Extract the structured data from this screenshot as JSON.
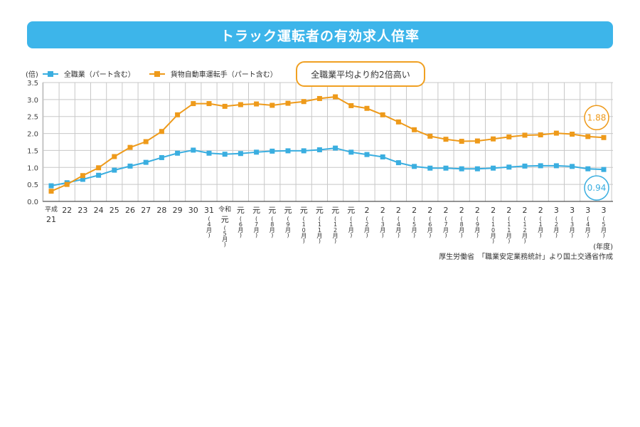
{
  "header": {
    "title": "トラック運転者の有効求人倍率"
  },
  "callout": "全職業平均より約2倍高い",
  "source": "厚生労働省　「職業安定業務統計」より国土交通省作成",
  "chart_data": {
    "type": "line",
    "title": "トラック運転者の有効求人倍率",
    "ylabel": "(倍)",
    "xlabel": "(年度)",
    "ylim": [
      0,
      3.5
    ],
    "yticks": [
      "0.0",
      "0.5",
      "1.0",
      "1.5",
      "2.0",
      "2.5",
      "3.0",
      "3.5"
    ],
    "grid": true,
    "legend_position": "top-left",
    "categories": [
      {
        "lines": [
          "平成",
          "21"
        ],
        "sub": ""
      },
      {
        "lines": [
          "22"
        ],
        "sub": ""
      },
      {
        "lines": [
          "23"
        ],
        "sub": ""
      },
      {
        "lines": [
          "24"
        ],
        "sub": ""
      },
      {
        "lines": [
          "25"
        ],
        "sub": ""
      },
      {
        "lines": [
          "26"
        ],
        "sub": ""
      },
      {
        "lines": [
          "27"
        ],
        "sub": ""
      },
      {
        "lines": [
          "28"
        ],
        "sub": ""
      },
      {
        "lines": [
          "29"
        ],
        "sub": ""
      },
      {
        "lines": [
          "30"
        ],
        "sub": ""
      },
      {
        "lines": [
          "31"
        ],
        "sub": "4月"
      },
      {
        "lines": [
          "令和",
          "元"
        ],
        "sub": "5月"
      },
      {
        "lines": [
          "元"
        ],
        "sub": "6月"
      },
      {
        "lines": [
          "元"
        ],
        "sub": "7月"
      },
      {
        "lines": [
          "元"
        ],
        "sub": "8月"
      },
      {
        "lines": [
          "元"
        ],
        "sub": "9月"
      },
      {
        "lines": [
          "元"
        ],
        "sub": "10月"
      },
      {
        "lines": [
          "元"
        ],
        "sub": "11月"
      },
      {
        "lines": [
          "元"
        ],
        "sub": "12月"
      },
      {
        "lines": [
          "元"
        ],
        "sub": "1月"
      },
      {
        "lines": [
          "2"
        ],
        "sub": "2月"
      },
      {
        "lines": [
          "2"
        ],
        "sub": "3月"
      },
      {
        "lines": [
          "2"
        ],
        "sub": "4月"
      },
      {
        "lines": [
          "2"
        ],
        "sub": "5月"
      },
      {
        "lines": [
          "2"
        ],
        "sub": "6月"
      },
      {
        "lines": [
          "2"
        ],
        "sub": "7月"
      },
      {
        "lines": [
          "2"
        ],
        "sub": "8月"
      },
      {
        "lines": [
          "2"
        ],
        "sub": "9月"
      },
      {
        "lines": [
          "2"
        ],
        "sub": "10月"
      },
      {
        "lines": [
          "2"
        ],
        "sub": "11月"
      },
      {
        "lines": [
          "2"
        ],
        "sub": "12月"
      },
      {
        "lines": [
          "2"
        ],
        "sub": "1月"
      },
      {
        "lines": [
          "3"
        ],
        "sub": "2月"
      },
      {
        "lines": [
          "3"
        ],
        "sub": "3月"
      },
      {
        "lines": [
          "3"
        ],
        "sub": "4月"
      },
      {
        "lines": [
          "3"
        ],
        "sub": "5月"
      }
    ],
    "series": [
      {
        "name": "全職業（パート含む）",
        "color": "#3aaee0",
        "last_label": "0.94",
        "values": [
          0.46,
          0.55,
          0.65,
          0.77,
          0.92,
          1.04,
          1.15,
          1.29,
          1.42,
          1.51,
          1.42,
          1.39,
          1.41,
          1.45,
          1.48,
          1.49,
          1.49,
          1.52,
          1.57,
          1.45,
          1.38,
          1.31,
          1.14,
          1.03,
          0.98,
          0.98,
          0.96,
          0.96,
          0.98,
          1.01,
          1.04,
          1.05,
          1.05,
          1.03,
          0.96,
          0.94
        ]
      },
      {
        "name": "貨物自動車運転手（パート含む）",
        "color": "#ee9a1a",
        "last_label": "1.88",
        "values": [
          0.3,
          0.5,
          0.76,
          0.99,
          1.32,
          1.59,
          1.76,
          2.06,
          2.55,
          2.88,
          2.88,
          2.8,
          2.85,
          2.87,
          2.83,
          2.89,
          2.94,
          3.03,
          3.08,
          2.82,
          2.74,
          2.55,
          2.34,
          2.11,
          1.92,
          1.83,
          1.77,
          1.78,
          1.84,
          1.9,
          1.95,
          1.96,
          2.01,
          1.98,
          1.91,
          1.88
        ]
      }
    ]
  }
}
